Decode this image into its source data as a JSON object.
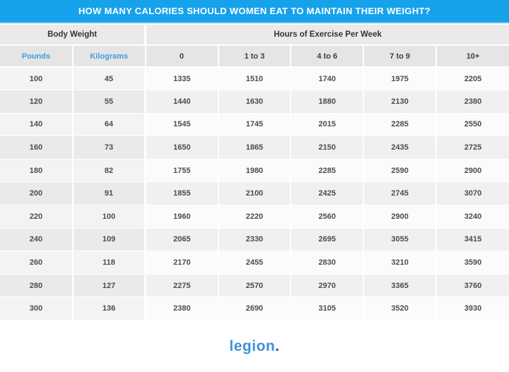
{
  "chart_data": {
    "type": "table",
    "title": "HOW MANY CALORIES SHOULD WOMEN EAT TO MAINTAIN THEIR WEIGHT?",
    "group_headers": [
      "Body Weight",
      "Hours of Exercise Per Week"
    ],
    "columns": [
      "Pounds",
      "Kilograms",
      "0",
      "1 to 3",
      "4 to 6",
      "7 to 9",
      "10+"
    ],
    "rows": [
      [
        "100",
        "45",
        "1335",
        "1510",
        "1740",
        "1975",
        "2205"
      ],
      [
        "120",
        "55",
        "1440",
        "1630",
        "1880",
        "2130",
        "2380"
      ],
      [
        "140",
        "64",
        "1545",
        "1745",
        "2015",
        "2285",
        "2550"
      ],
      [
        "160",
        "73",
        "1650",
        "1865",
        "2150",
        "2435",
        "2725"
      ],
      [
        "180",
        "82",
        "1755",
        "1980",
        "2285",
        "2590",
        "2900"
      ],
      [
        "200",
        "91",
        "1855",
        "2100",
        "2425",
        "2745",
        "3070"
      ],
      [
        "220",
        "100",
        "1960",
        "2220",
        "2560",
        "2900",
        "3240"
      ],
      [
        "240",
        "109",
        "2065",
        "2330",
        "2695",
        "3055",
        "3415"
      ],
      [
        "260",
        "118",
        "2170",
        "2455",
        "2830",
        "3210",
        "3590"
      ],
      [
        "280",
        "127",
        "2275",
        "2570",
        "2970",
        "3365",
        "3760"
      ],
      [
        "300",
        "136",
        "2380",
        "2690",
        "3105",
        "3520",
        "3930"
      ]
    ]
  },
  "footer": {
    "logo_text": "legion",
    "logo_dot": "."
  },
  "colors": {
    "title_bar": "#15A2EB",
    "title_bar_edge": "#5FBAEE",
    "title_text": "#FFFFFF",
    "unit_header_text": "#3E9EDC",
    "header_row_bg": "#EAEAEA",
    "cols_row_bg": "#E5E5E5",
    "data_text": "#4C4C4C",
    "logo_blue": "#3E92D9",
    "logo_dot_blue": "#1D5380"
  }
}
